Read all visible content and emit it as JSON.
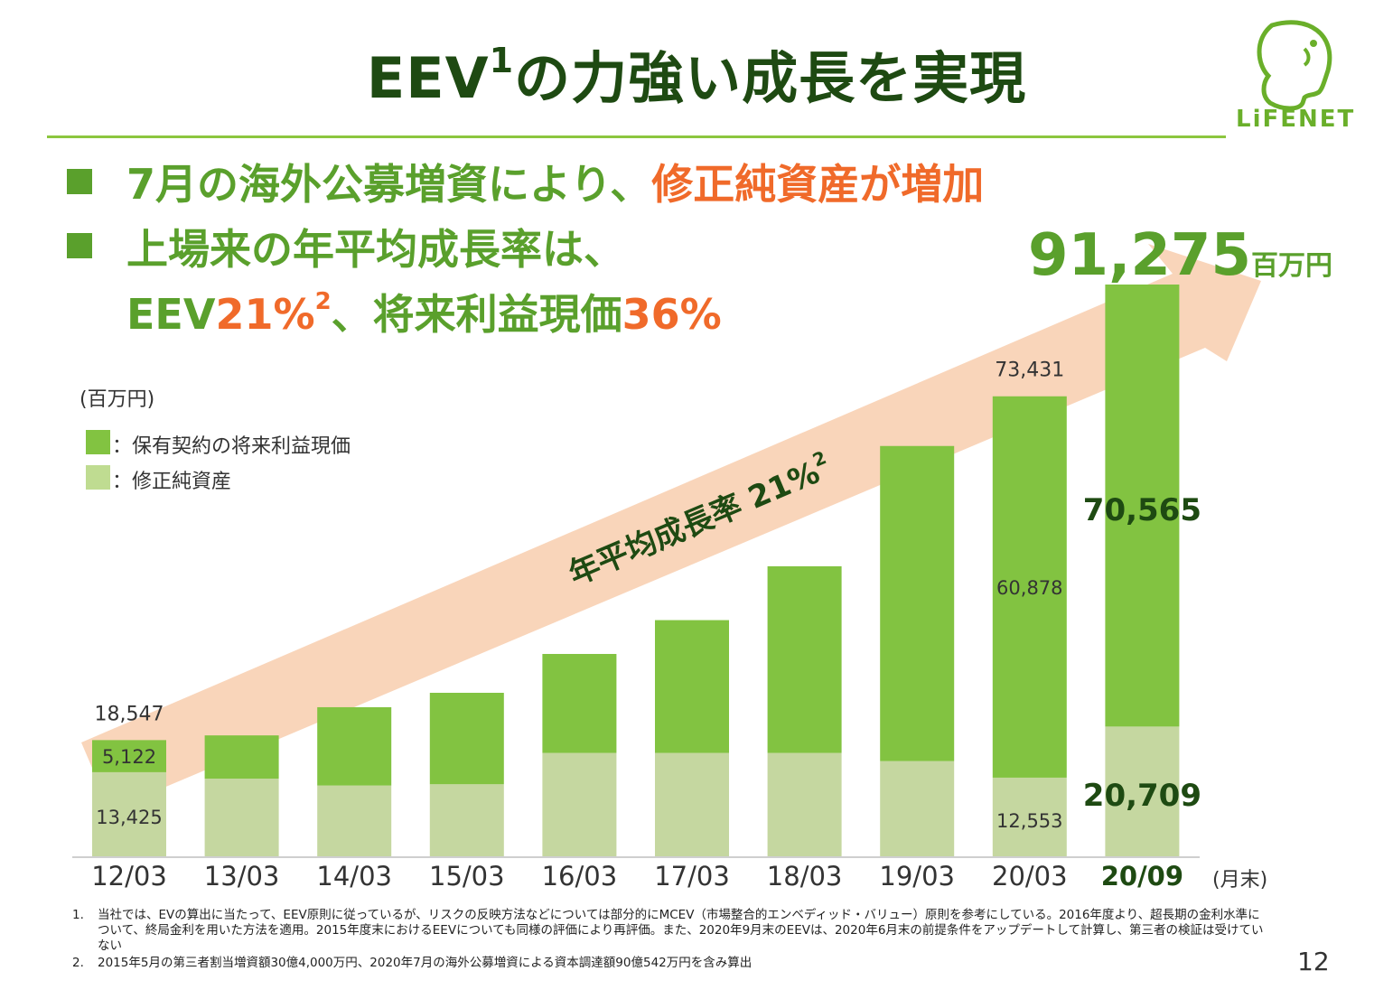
{
  "title": {
    "main_a": "EEV",
    "sup": "1",
    "main_b": "の力強い成長を実現"
  },
  "logo": {
    "text": "LiFENET"
  },
  "bullets": [
    {
      "a": "7月の海外公募増資により、",
      "b": "修正純資産が増加"
    },
    {
      "a": "上場来の年平均成長率は、"
    },
    {
      "a": "EEV",
      "b": "21%",
      "sup": "2",
      "c": "、将来利益現価",
      "d": "36%"
    }
  ],
  "unit_label": "(百万円)",
  "legend": [
    {
      "label": "：保有契約の将来利益現価",
      "color": "#82c341"
    },
    {
      "label": "：修正純資産",
      "color": "#bfdc91"
    }
  ],
  "arrow_label": "年平均成長率 21%",
  "arrow_label_sup": "2",
  "big_total": {
    "value": "91,275",
    "unit": "百万円"
  },
  "month_end_label": "(月末)",
  "chart_data": {
    "type": "bar",
    "stacked": true,
    "categories": [
      "12/03",
      "13/03",
      "14/03",
      "15/03",
      "16/03",
      "17/03",
      "18/03",
      "19/03",
      "20/03",
      "20/09"
    ],
    "series": [
      {
        "name": "修正純資産",
        "color": "#c5d7a0",
        "values": [
          13425,
          12400,
          11300,
          11500,
          16500,
          16500,
          16500,
          15200,
          12553,
          20709
        ]
      },
      {
        "name": "保有契約の将来利益現価",
        "color": "#82c341",
        "values": [
          5122,
          6900,
          12500,
          14600,
          15800,
          21200,
          29800,
          50300,
          60878,
          70565
        ]
      }
    ],
    "totals_labels": {
      "12/03": "18,547",
      "20/03": "73,431"
    },
    "segment_labels": [
      {
        "category": "12/03",
        "series": 0,
        "text": "13,425"
      },
      {
        "category": "12/03",
        "series": 1,
        "text": "5,122"
      },
      {
        "category": "20/03",
        "series": 0,
        "text": "12,553"
      },
      {
        "category": "20/03",
        "series": 1,
        "text": "60,878"
      }
    ],
    "highlight_labels": {
      "net_assets": "20,709",
      "future_profit": "70,565"
    },
    "ylim": [
      0,
      100000
    ],
    "grid": false
  },
  "footnotes": [
    {
      "num": "1.",
      "text": "当社では、EVの算出に当たって、EEV原則に従っているが、リスクの反映方法などについては部分的にMCEV（市場整合的エンベディッド・バリュー）原則を参考にしている。2016年度より、超長期の金利水準について、終局金利を用いた方法を適用。2015年度末におけるEEVについても同様の評価により再評価。また、2020年9月末のEEVは、2020年6月末の前提条件をアップデートして計算し、第三者の検証は受けていない"
    },
    {
      "num": "2.",
      "text": "2015年5月の第三者割当増資額30億4,000万円、2020年7月の海外公募増資による資本調達額90億542万円を含み算出"
    }
  ],
  "page_number": "12"
}
